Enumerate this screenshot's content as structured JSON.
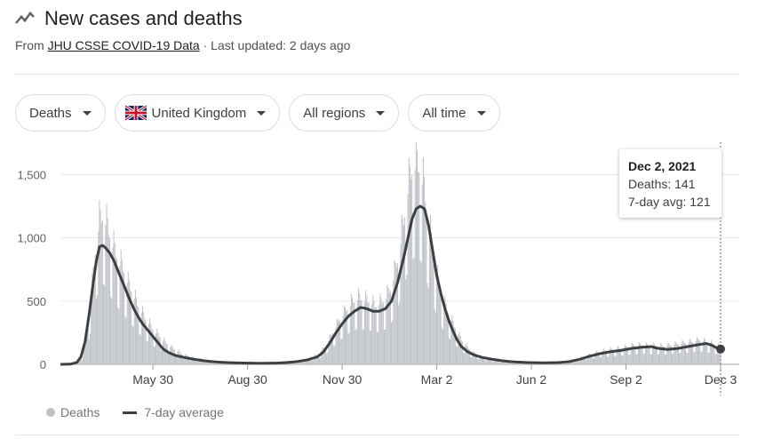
{
  "header": {
    "title": "New cases and deaths",
    "icon": "trending-line-icon",
    "source_prefix": "From ",
    "source_link": "JHU CSSE COVID-19 Data",
    "updated": " · Last updated: 2 days ago"
  },
  "filters": {
    "metric": "Deaths",
    "country": "United Kingdom",
    "region": "All regions",
    "time": "All time"
  },
  "tooltip": {
    "date": "Dec 2, 2021",
    "deaths": "Deaths: 141",
    "avg": "7-day avg: 121"
  },
  "legend": {
    "bars": "Deaths",
    "line": "7-day average"
  },
  "colors": {
    "bars": "#bdc1c6",
    "line": "#3c4043",
    "grid": "#e8eaed"
  },
  "chart_data": {
    "type": "bar",
    "ylim": [
      0,
      1700
    ],
    "yticks": [
      "0",
      "500",
      "1,000",
      "1,500"
    ],
    "ytick_values": [
      0,
      500,
      1000,
      1500
    ],
    "xticks": [
      "May 30",
      "Aug 30",
      "Nov 30",
      "Mar 2",
      "Jun 2",
      "Sep 2",
      "Dec 3"
    ],
    "xtick_days": [
      90,
      182,
      274,
      366,
      458,
      550,
      642
    ],
    "x_range_days": [
      0,
      642
    ],
    "grid": true,
    "series": [
      {
        "name": "Deaths",
        "type": "bar",
        "day_values": [
          [
            0,
            0
          ],
          [
            14,
            5
          ],
          [
            21,
            60
          ],
          [
            28,
            350
          ],
          [
            32,
            700
          ],
          [
            35,
            950
          ],
          [
            38,
            1100
          ],
          [
            42,
            1150
          ],
          [
            46,
            1050
          ],
          [
            50,
            950
          ],
          [
            54,
            850
          ],
          [
            58,
            780
          ],
          [
            62,
            720
          ],
          [
            66,
            620
          ],
          [
            70,
            560
          ],
          [
            74,
            480
          ],
          [
            78,
            420
          ],
          [
            82,
            360
          ],
          [
            86,
            320
          ],
          [
            90,
            270
          ],
          [
            96,
            220
          ],
          [
            102,
            170
          ],
          [
            108,
            130
          ],
          [
            114,
            100
          ],
          [
            120,
            75
          ],
          [
            130,
            50
          ],
          [
            140,
            35
          ],
          [
            150,
            25
          ],
          [
            160,
            18
          ],
          [
            175,
            12
          ],
          [
            190,
            10
          ],
          [
            200,
            9
          ],
          [
            210,
            10
          ],
          [
            220,
            15
          ],
          [
            230,
            25
          ],
          [
            240,
            40
          ],
          [
            250,
            70
          ],
          [
            258,
            140
          ],
          [
            266,
            260
          ],
          [
            272,
            350
          ],
          [
            278,
            420
          ],
          [
            284,
            480
          ],
          [
            290,
            510
          ],
          [
            296,
            500
          ],
          [
            302,
            480
          ],
          [
            306,
            450
          ],
          [
            310,
            470
          ],
          [
            316,
            500
          ],
          [
            322,
            600
          ],
          [
            328,
            800
          ],
          [
            334,
            1100
          ],
          [
            338,
            1350
          ],
          [
            342,
            1500
          ],
          [
            346,
            1550
          ],
          [
            350,
            1500
          ],
          [
            354,
            1350
          ],
          [
            358,
            1100
          ],
          [
            362,
            900
          ],
          [
            366,
            700
          ],
          [
            372,
            500
          ],
          [
            378,
            380
          ],
          [
            384,
            280
          ],
          [
            390,
            190
          ],
          [
            396,
            130
          ],
          [
            402,
            90
          ],
          [
            410,
            60
          ],
          [
            420,
            40
          ],
          [
            430,
            25
          ],
          [
            440,
            18
          ],
          [
            455,
            12
          ],
          [
            470,
            10
          ],
          [
            485,
            15
          ],
          [
            495,
            25
          ],
          [
            505,
            45
          ],
          [
            515,
            75
          ],
          [
            525,
            100
          ],
          [
            535,
            115
          ],
          [
            545,
            125
          ],
          [
            555,
            145
          ],
          [
            565,
            150
          ],
          [
            575,
            145
          ],
          [
            585,
            140
          ],
          [
            595,
            150
          ],
          [
            605,
            165
          ],
          [
            615,
            175
          ],
          [
            622,
            190
          ],
          [
            630,
            170
          ],
          [
            636,
            150
          ],
          [
            640,
            141
          ],
          [
            642,
            141
          ]
        ]
      },
      {
        "name": "7-day average",
        "type": "line",
        "day_values": [
          [
            0,
            0
          ],
          [
            10,
            2
          ],
          [
            16,
            15
          ],
          [
            20,
            60
          ],
          [
            24,
            180
          ],
          [
            28,
            400
          ],
          [
            32,
            650
          ],
          [
            35,
            820
          ],
          [
            38,
            930
          ],
          [
            41,
            940
          ],
          [
            44,
            920
          ],
          [
            48,
            880
          ],
          [
            52,
            820
          ],
          [
            56,
            740
          ],
          [
            60,
            660
          ],
          [
            64,
            580
          ],
          [
            68,
            500
          ],
          [
            72,
            430
          ],
          [
            76,
            370
          ],
          [
            80,
            320
          ],
          [
            84,
            280
          ],
          [
            88,
            240
          ],
          [
            92,
            200
          ],
          [
            96,
            160
          ],
          [
            100,
            120
          ],
          [
            106,
            90
          ],
          [
            112,
            70
          ],
          [
            120,
            55
          ],
          [
            130,
            40
          ],
          [
            140,
            28
          ],
          [
            150,
            20
          ],
          [
            160,
            15
          ],
          [
            170,
            12
          ],
          [
            180,
            10
          ],
          [
            190,
            9
          ],
          [
            200,
            9
          ],
          [
            210,
            10
          ],
          [
            220,
            14
          ],
          [
            230,
            22
          ],
          [
            240,
            35
          ],
          [
            250,
            60
          ],
          [
            256,
            100
          ],
          [
            262,
            170
          ],
          [
            268,
            250
          ],
          [
            274,
            320
          ],
          [
            280,
            380
          ],
          [
            286,
            420
          ],
          [
            292,
            450
          ],
          [
            298,
            440
          ],
          [
            304,
            420
          ],
          [
            310,
            420
          ],
          [
            316,
            440
          ],
          [
            322,
            500
          ],
          [
            328,
            650
          ],
          [
            334,
            850
          ],
          [
            338,
            1000
          ],
          [
            342,
            1150
          ],
          [
            346,
            1230
          ],
          [
            350,
            1250
          ],
          [
            354,
            1230
          ],
          [
            358,
            1100
          ],
          [
            362,
            900
          ],
          [
            366,
            700
          ],
          [
            370,
            560
          ],
          [
            374,
            440
          ],
          [
            378,
            340
          ],
          [
            382,
            260
          ],
          [
            386,
            190
          ],
          [
            390,
            140
          ],
          [
            396,
            100
          ],
          [
            402,
            75
          ],
          [
            410,
            55
          ],
          [
            420,
            40
          ],
          [
            430,
            28
          ],
          [
            440,
            20
          ],
          [
            455,
            14
          ],
          [
            470,
            12
          ],
          [
            485,
            14
          ],
          [
            495,
            22
          ],
          [
            505,
            40
          ],
          [
            515,
            65
          ],
          [
            525,
            85
          ],
          [
            535,
            100
          ],
          [
            545,
            110
          ],
          [
            555,
            125
          ],
          [
            565,
            135
          ],
          [
            575,
            140
          ],
          [
            580,
            128
          ],
          [
            590,
            118
          ],
          [
            600,
            125
          ],
          [
            610,
            140
          ],
          [
            620,
            155
          ],
          [
            628,
            165
          ],
          [
            634,
            150
          ],
          [
            638,
            130
          ],
          [
            642,
            121
          ]
        ]
      }
    ]
  }
}
